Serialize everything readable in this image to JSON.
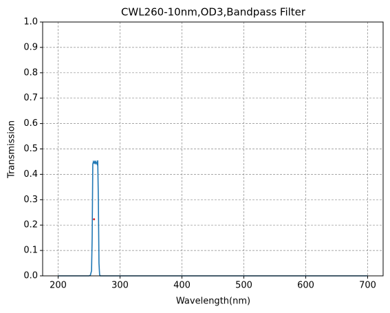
{
  "chart_data": {
    "type": "line",
    "title": "CWL260-10nm,OD3,Bandpass Filter",
    "x_label": "Wavelength(nm)",
    "y_label": "Transmission",
    "x": [
      200,
      250,
      252,
      254,
      255,
      256,
      257,
      258,
      259,
      260,
      261,
      262,
      263,
      264,
      265,
      266,
      267,
      268,
      270,
      700
    ],
    "series": [
      {
        "color": "#1f77b4",
        "values": [
          0,
          0,
          0.002,
          0.02,
          0.15,
          0.44,
          0.45,
          0.445,
          0.45,
          0.44,
          0.45,
          0.445,
          0.44,
          0.455,
          0.3,
          0.05,
          0.005,
          0,
          0,
          0
        ]
      }
    ],
    "points": [
      {
        "x": 258,
        "y": 0.223,
        "color": "#d62728"
      }
    ],
    "xlim": [
      175,
      725
    ],
    "xticks": [
      200,
      300,
      400,
      500,
      600,
      700
    ],
    "ylim": [
      0,
      1
    ],
    "yticks": [
      {
        "value": 0,
        "label": "0.0"
      },
      0.1,
      0.2,
      0.3,
      0.4,
      0.5,
      0.6,
      0.7,
      0.8,
      0.9,
      {
        "value": 1,
        "label": "1.0"
      }
    ],
    "grid": true
  }
}
